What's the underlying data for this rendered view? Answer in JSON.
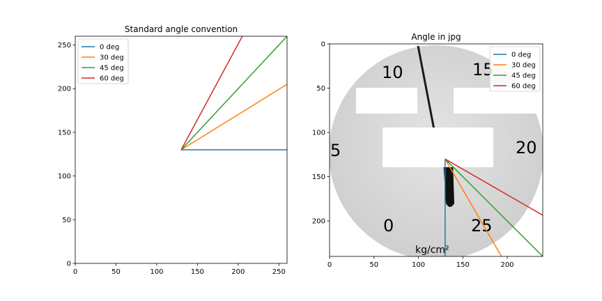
{
  "chart_data": [
    {
      "type": "line",
      "title": "Standard angle convention",
      "xlabel": "",
      "ylabel": "",
      "xlim": [
        0,
        260
      ],
      "ylim": [
        0,
        260
      ],
      "xticks": [
        0,
        50,
        100,
        150,
        200,
        250
      ],
      "yticks": [
        0,
        50,
        100,
        150,
        200,
        250
      ],
      "grid": false,
      "legend_position": "top-left",
      "series": [
        {
          "name": "0 deg",
          "color": "#1f77b4",
          "x": [
            130,
            260
          ],
          "y": [
            130,
            130
          ]
        },
        {
          "name": "30 deg",
          "color": "#ff7f0e",
          "x": [
            130,
            260
          ],
          "y": [
            130,
            205.06
          ]
        },
        {
          "name": "45 deg",
          "color": "#2ca02c",
          "x": [
            130,
            260
          ],
          "y": [
            130,
            260
          ]
        },
        {
          "name": "60 deg",
          "color": "#d62728",
          "x": [
            130,
            205.06
          ],
          "y": [
            130,
            260
          ]
        }
      ]
    },
    {
      "type": "line",
      "title": "Angle in jpg",
      "xlabel": "",
      "ylabel": "",
      "xlim": [
        0,
        240
      ],
      "ylim": [
        240,
        0
      ],
      "xticks": [
        0,
        50,
        100,
        150,
        200
      ],
      "yticks": [
        0,
        50,
        100,
        150,
        200
      ],
      "grid": false,
      "legend_position": "top-right",
      "background": "photo of a pressure gauge dial",
      "dial_labels": [
        "10",
        "15",
        "5",
        "20",
        "0",
        "25",
        "kg/cm²"
      ],
      "series": [
        {
          "name": "0 deg",
          "color": "#1f77b4",
          "x": [
            130,
            130
          ],
          "y": [
            130,
            240
          ]
        },
        {
          "name": "30 deg",
          "color": "#ff7f0e",
          "x": [
            130,
            193.5
          ],
          "y": [
            130,
            240
          ]
        },
        {
          "name": "45 deg",
          "color": "#2ca02c",
          "x": [
            130,
            240
          ],
          "y": [
            130,
            240
          ]
        },
        {
          "name": "60 deg",
          "color": "#d62728",
          "x": [
            130,
            240
          ],
          "y": [
            130,
            193.5
          ]
        }
      ]
    }
  ]
}
